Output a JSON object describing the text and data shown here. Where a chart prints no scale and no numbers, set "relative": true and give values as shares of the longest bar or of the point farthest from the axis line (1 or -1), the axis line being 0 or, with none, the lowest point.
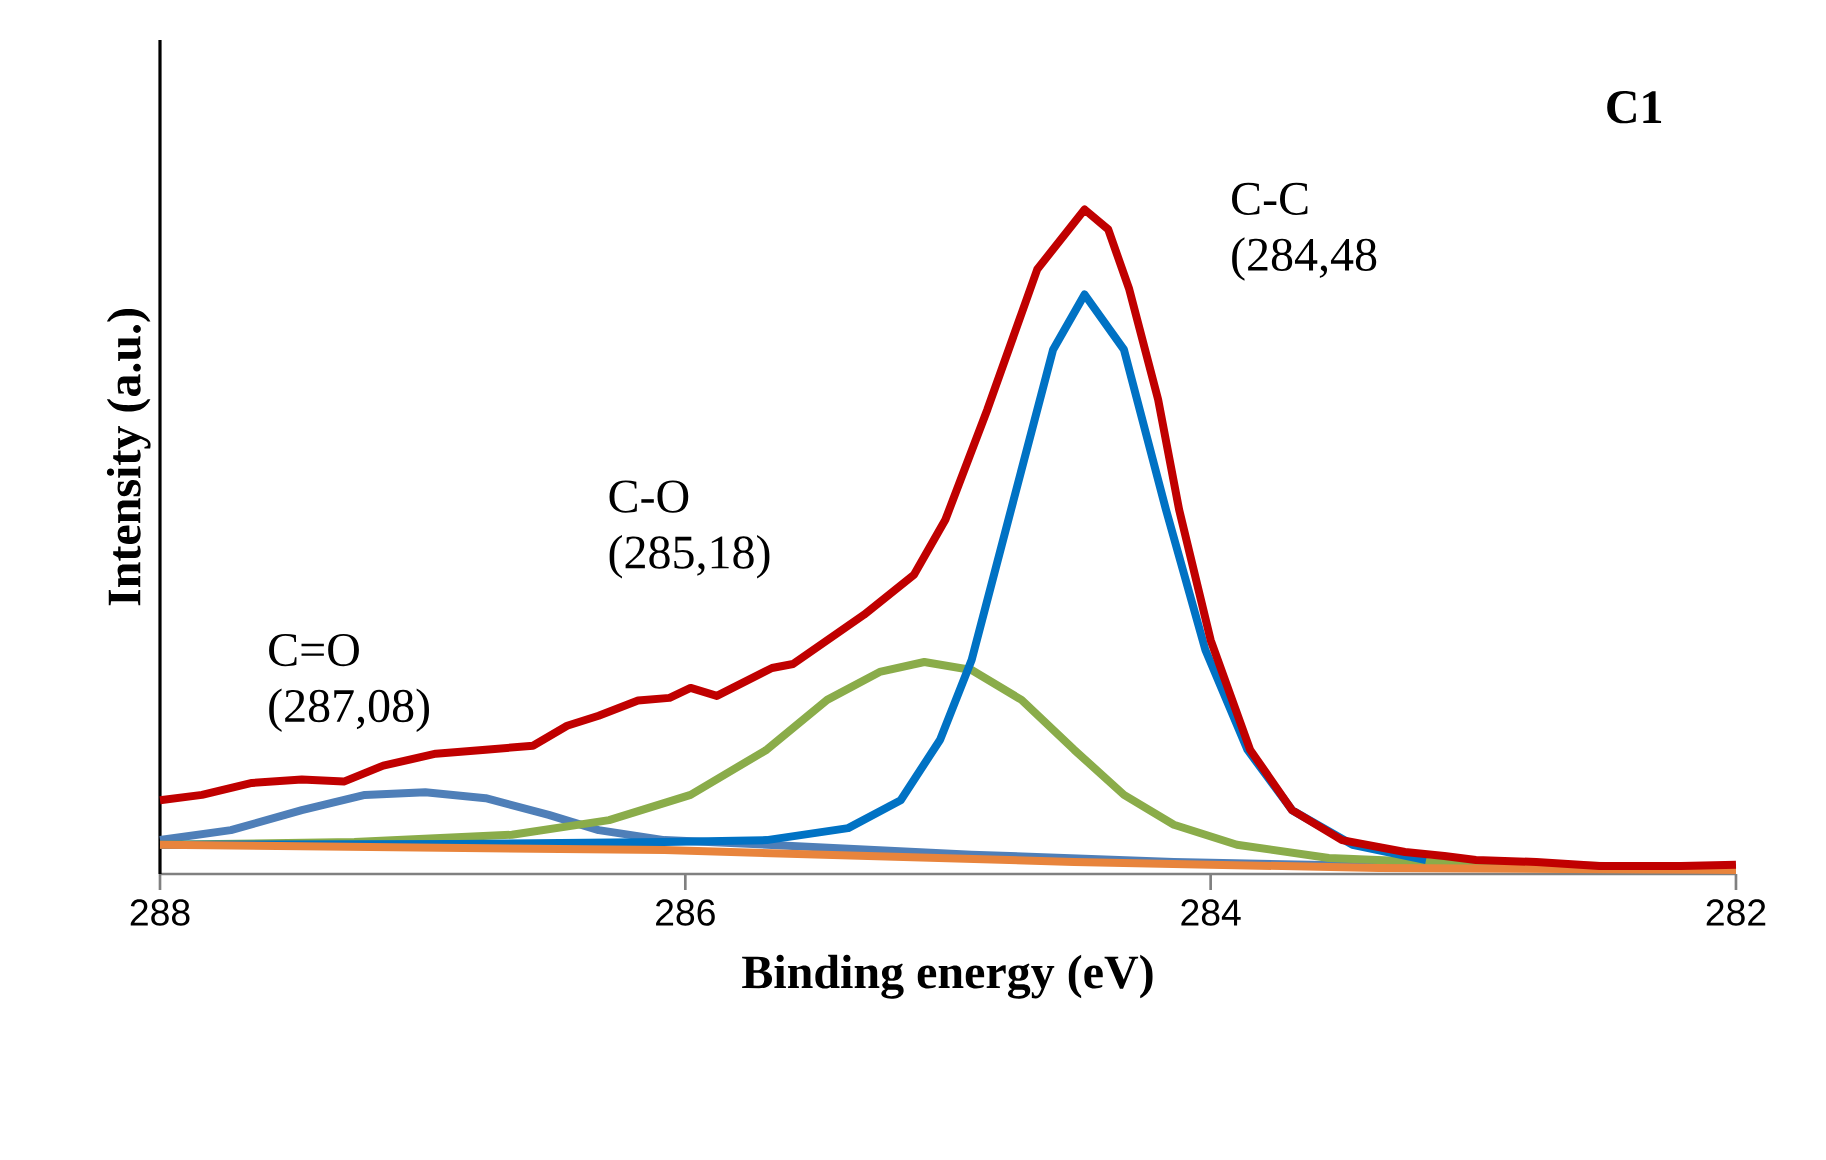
{
  "chart_data": {
    "type": "line",
    "title": "C1",
    "xlabel": "Binding energy (eV)",
    "ylabel": "Intensity (a.u.)",
    "relative": true,
    "grid": false,
    "marker": "none",
    "xlim": [
      288,
      282
    ],
    "xticks": [
      288,
      286,
      284,
      282
    ],
    "series": [
      {
        "color": "#4f7fb8",
        "x": [
          288.0,
          287.73,
          287.46,
          287.22,
          286.99,
          286.76,
          286.52,
          286.33,
          286.08,
          285.69,
          284.91,
          284.14,
          283.36,
          282.0
        ],
        "values": [
          0.051,
          0.066,
          0.096,
          0.119,
          0.123,
          0.114,
          0.089,
          0.066,
          0.051,
          0.044,
          0.029,
          0.018,
          0.012,
          0.006
        ]
      },
      {
        "color": "#8aac4a",
        "x": [
          288.0,
          287.26,
          286.66,
          286.29,
          285.98,
          285.69,
          285.46,
          285.26,
          285.09,
          284.91,
          284.72,
          284.52,
          284.33,
          284.14,
          283.9,
          283.55,
          282.99,
          282.0
        ],
        "values": [
          0.044,
          0.048,
          0.059,
          0.081,
          0.119,
          0.187,
          0.262,
          0.304,
          0.319,
          0.307,
          0.262,
          0.187,
          0.119,
          0.074,
          0.044,
          0.024,
          0.015,
          0.009
        ]
      },
      {
        "color": "#0072c4",
        "x": [
          288.0,
          286.87,
          286.08,
          285.69,
          285.38,
          285.18,
          285.03,
          284.91,
          284.76,
          284.6,
          284.48,
          284.33,
          284.17,
          284.02,
          283.86,
          283.69,
          283.46,
          283.18
        ],
        "values": [
          0.044,
          0.045,
          0.048,
          0.051,
          0.069,
          0.111,
          0.202,
          0.322,
          0.548,
          0.789,
          0.872,
          0.789,
          0.548,
          0.337,
          0.187,
          0.096,
          0.044,
          0.021
        ]
      },
      {
        "color": "#e8843c",
        "x": [
          288.0,
          286.08,
          284.52,
          283.36,
          282.0
        ],
        "values": [
          0.044,
          0.036,
          0.018,
          0.009,
          0.006
        ]
      },
      {
        "color": "#c00000",
        "x": [
          288.0,
          287.84,
          287.65,
          287.46,
          287.3,
          287.15,
          286.95,
          286.76,
          286.58,
          286.45,
          286.33,
          286.18,
          286.06,
          285.98,
          285.88,
          285.67,
          285.59,
          285.32,
          285.13,
          285.01,
          284.85,
          284.66,
          284.48,
          284.39,
          284.31,
          284.2,
          284.12,
          284.0,
          283.85,
          283.69,
          283.5,
          283.26,
          283.11,
          282.99,
          282.76,
          282.52,
          282.21,
          282.0
        ],
        "values": [
          0.111,
          0.119,
          0.137,
          0.142,
          0.139,
          0.163,
          0.181,
          0.187,
          0.193,
          0.223,
          0.238,
          0.261,
          0.265,
          0.28,
          0.268,
          0.31,
          0.316,
          0.39,
          0.45,
          0.533,
          0.699,
          0.91,
          1.0,
          0.97,
          0.88,
          0.714,
          0.548,
          0.352,
          0.187,
          0.096,
          0.051,
          0.033,
          0.027,
          0.021,
          0.018,
          0.012,
          0.012,
          0.014
        ]
      }
    ],
    "annotations": [
      "C=O (287,08)",
      "C-O (285,18)",
      "C-C (284,48"
    ]
  }
}
